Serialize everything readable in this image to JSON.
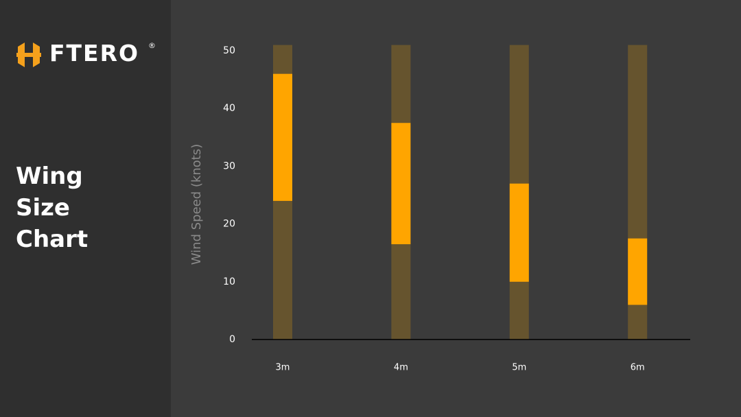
{
  "sidebar": {
    "logo": "FTERO",
    "registered": "®",
    "title": "Wing Size Chart"
  },
  "chart_data": {
    "type": "range-bar",
    "y_label": "Wind Speed (knots)",
    "categories": [
      "3m",
      "4m",
      "5m",
      "6m"
    ],
    "series": [
      {
        "color": "#66542e",
        "values": [
          [
            0,
            51
          ],
          [
            0,
            51
          ],
          [
            0,
            51
          ],
          [
            0,
            51
          ]
        ]
      },
      {
        "color": "#ffa500",
        "values": [
          [
            24,
            46
          ],
          [
            16.5,
            37.5
          ],
          [
            10,
            27
          ],
          [
            6,
            17.5
          ]
        ]
      }
    ],
    "ylim": [
      0,
      50
    ],
    "yticks": [
      0,
      10,
      20,
      30,
      40,
      50
    ]
  }
}
